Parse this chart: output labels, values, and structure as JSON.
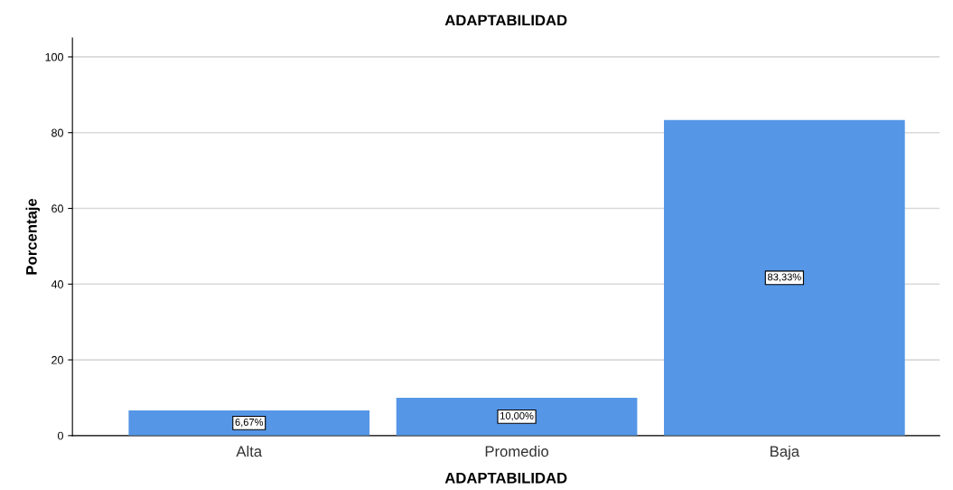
{
  "chart_data": {
    "type": "bar",
    "title": "ADAPTABILIDAD",
    "xlabel": "ADAPTABILIDAD",
    "ylabel": "Porcentaje",
    "categories": [
      "Alta",
      "Promedio",
      "Baja"
    ],
    "values": [
      6.67,
      10.0,
      83.33
    ],
    "color": "#5596e6",
    "value_labels": [
      "6,67%",
      "10,00%",
      "83,33%"
    ],
    "ylim": [
      0,
      105
    ],
    "yticks": [
      0,
      20,
      40,
      60,
      80,
      100
    ],
    "grid": "y",
    "legend": false
  }
}
